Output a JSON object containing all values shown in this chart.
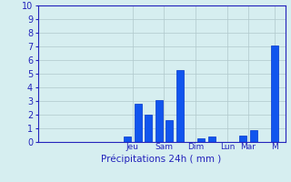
{
  "bars": [
    {
      "x": 0,
      "height": 0.0
    },
    {
      "x": 1,
      "height": 0.0
    },
    {
      "x": 2,
      "height": 0.0
    },
    {
      "x": 3,
      "height": 0.0
    },
    {
      "x": 4,
      "height": 0.0
    },
    {
      "x": 5,
      "height": 0.0
    },
    {
      "x": 6,
      "height": 0.0
    },
    {
      "x": 7,
      "height": 0.0
    },
    {
      "x": 8,
      "height": 0.4
    },
    {
      "x": 9,
      "height": 2.8
    },
    {
      "x": 10,
      "height": 2.0
    },
    {
      "x": 11,
      "height": 3.1
    },
    {
      "x": 12,
      "height": 1.6
    },
    {
      "x": 13,
      "height": 5.3
    },
    {
      "x": 14,
      "height": 0.0
    },
    {
      "x": 15,
      "height": 0.3
    },
    {
      "x": 16,
      "height": 0.4
    },
    {
      "x": 17,
      "height": 0.0
    },
    {
      "x": 18,
      "height": 0.0
    },
    {
      "x": 19,
      "height": 0.5
    },
    {
      "x": 20,
      "height": 0.9
    },
    {
      "x": 21,
      "height": 0.0
    },
    {
      "x": 22,
      "height": 7.1
    }
  ],
  "tick_positions": [
    8.5,
    11.5,
    14.5,
    17.5,
    19.5,
    22
  ],
  "tick_labels": [
    "Jeu",
    "Sam",
    "Dim",
    "Lun",
    "Mar",
    "M"
  ],
  "bar_color": "#1155ee",
  "bar_edge_color": "#0033cc",
  "bg_color": "#d6eef0",
  "grid_color": "#b0c8cc",
  "axis_color": "#2222bb",
  "tick_color": "#2222bb",
  "xlabel": "Précipitations 24h ( mm )",
  "xlabel_color": "#2222bb",
  "ylim": [
    0,
    10
  ],
  "yticks": [
    0,
    1,
    2,
    3,
    4,
    5,
    6,
    7,
    8,
    9,
    10
  ],
  "xlim": [
    -0.5,
    23
  ],
  "bar_width": 0.7,
  "figsize": [
    3.2,
    2.0
  ],
  "dpi": 100
}
